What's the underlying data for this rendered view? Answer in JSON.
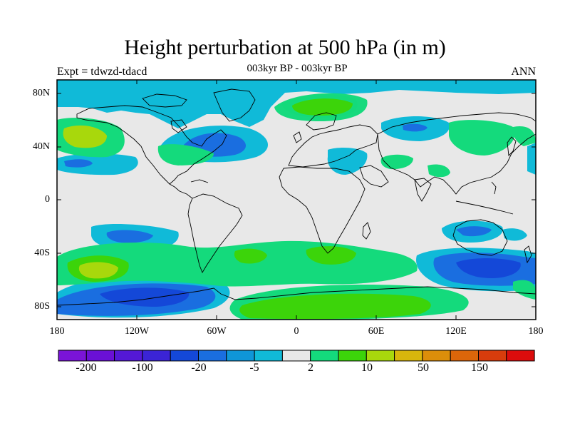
{
  "title": "Height perturbation at 500 hPa (in m)",
  "subtitle": "003kyr BP - 003kyr BP",
  "left_label": "Expt = tdwzd-tdacd",
  "right_label": "ANN",
  "lat_labels": [
    "80N",
    "40N",
    "0",
    "40S",
    "80S"
  ],
  "lon_labels": [
    "180",
    "120W",
    "60W",
    "0",
    "60E",
    "120E",
    "180"
  ],
  "colorbar": {
    "colors": [
      "#7a14d8",
      "#6a10d6",
      "#5418d6",
      "#3b24d6",
      "#1448d8",
      "#1a6ee0",
      "#0f96d8",
      "#10bad8",
      "#e8e8e8",
      "#14da7c",
      "#3cd40a",
      "#a8d80c",
      "#d8b60c",
      "#dc8e0a",
      "#dc660a",
      "#d83c0c",
      "#dc0c0c"
    ],
    "tick_labels": [
      "-200",
      "-100",
      "-20",
      "-5",
      "2",
      "10",
      "50",
      "150"
    ]
  },
  "colors": {
    "background": "#e8e8e8",
    "neg_light": "#10bad8",
    "neg_mid": "#1a6ee0",
    "pos_light": "#14da7c",
    "pos_mid": "#3cd40a",
    "pos_strong": "#a8d80c"
  }
}
